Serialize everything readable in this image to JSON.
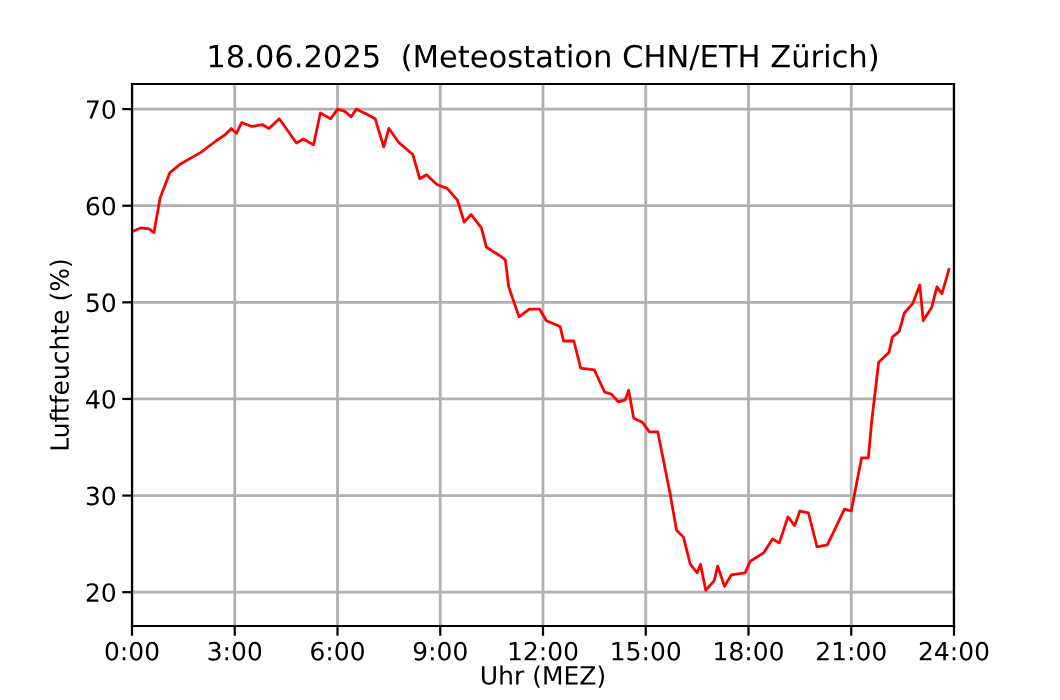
{
  "chart_data": {
    "type": "line",
    "title": "18.06.2025  (Meteostation CHN/ETH Zürich)",
    "xlabel": "Uhr (MEZ)",
    "ylabel": "Luftfeuchte (%)",
    "series": [
      {
        "color": "#ff0000",
        "x": [
          0,
          0.25,
          0.5,
          0.64,
          0.82,
          1.1,
          1.4,
          2.0,
          2.45,
          2.7,
          2.9,
          3.05,
          3.2,
          3.5,
          3.8,
          4.0,
          4.3,
          4.8,
          5.0,
          5.3,
          5.5,
          5.8,
          6.0,
          6.2,
          6.4,
          6.55,
          6.9,
          7.1,
          7.35,
          7.5,
          7.8,
          8.2,
          8.4,
          8.6,
          8.9,
          9.2,
          9.5,
          9.7,
          9.9,
          10.2,
          10.35,
          10.75,
          10.9,
          11.0,
          11.3,
          11.6,
          11.9,
          12.1,
          12.5,
          12.6,
          12.9,
          13.1,
          13.5,
          13.8,
          14.0,
          14.2,
          14.4,
          14.5,
          14.65,
          14.9,
          15.1,
          15.35,
          15.7,
          15.9,
          16.1,
          16.3,
          16.5,
          16.6,
          16.75,
          17.0,
          17.1,
          17.3,
          17.5,
          17.9,
          18.05,
          18.45,
          18.7,
          18.9,
          19.15,
          19.35,
          19.5,
          19.75,
          20.0,
          20.3,
          20.55,
          20.8,
          21.0,
          21.3,
          21.5,
          21.6,
          21.8,
          22.1,
          22.2,
          22.4,
          22.55,
          22.8,
          23.0,
          23.1,
          23.35,
          23.5,
          23.65,
          23.85
        ],
        "values": [
          57.3,
          57.7,
          57.6,
          57.2,
          60.8,
          63.4,
          64.3,
          65.5,
          66.7,
          67.3,
          68.0,
          67.5,
          68.6,
          68.2,
          68.4,
          68.0,
          69.0,
          66.5,
          66.9,
          66.3,
          69.6,
          69.0,
          70.0,
          69.8,
          69.2,
          70.0,
          69.4,
          69.0,
          66.1,
          68.0,
          66.5,
          65.3,
          62.8,
          63.2,
          62.2,
          61.8,
          60.6,
          58.3,
          59.1,
          57.7,
          55.7,
          54.8,
          54.4,
          51.6,
          48.5,
          49.3,
          49.3,
          48.1,
          47.5,
          46.0,
          46.0,
          43.2,
          43.0,
          40.7,
          40.5,
          39.7,
          39.9,
          40.9,
          38.0,
          37.6,
          36.6,
          36.6,
          30.4,
          26.4,
          25.7,
          22.9,
          22.0,
          22.9,
          20.2,
          21.2,
          22.7,
          20.6,
          21.8,
          22.0,
          23.2,
          24.1,
          25.5,
          25.1,
          27.8,
          26.9,
          28.4,
          28.2,
          24.7,
          24.9,
          26.7,
          28.6,
          28.4,
          33.9,
          33.9,
          37.8,
          43.8,
          44.8,
          46.4,
          47.0,
          48.9,
          49.9,
          51.8,
          48.1,
          49.5,
          51.6,
          50.9,
          53.4
        ]
      }
    ],
    "xlim": [
      0,
      24
    ],
    "xticks": [
      {
        "value": 0,
        "label": "0:00"
      },
      {
        "value": 3,
        "label": "3:00"
      },
      {
        "value": 6,
        "label": "6:00"
      },
      {
        "value": 9,
        "label": "9:00"
      },
      {
        "value": 12,
        "label": "12:00"
      },
      {
        "value": 15,
        "label": "15:00"
      },
      {
        "value": 18,
        "label": "18:00"
      },
      {
        "value": 21,
        "label": "21:00"
      },
      {
        "value": 24,
        "label": "24:00"
      }
    ],
    "ylim": [
      16.5,
      72.6
    ],
    "yticks": [
      20,
      30,
      40,
      50,
      60,
      70
    ],
    "grid": true
  }
}
